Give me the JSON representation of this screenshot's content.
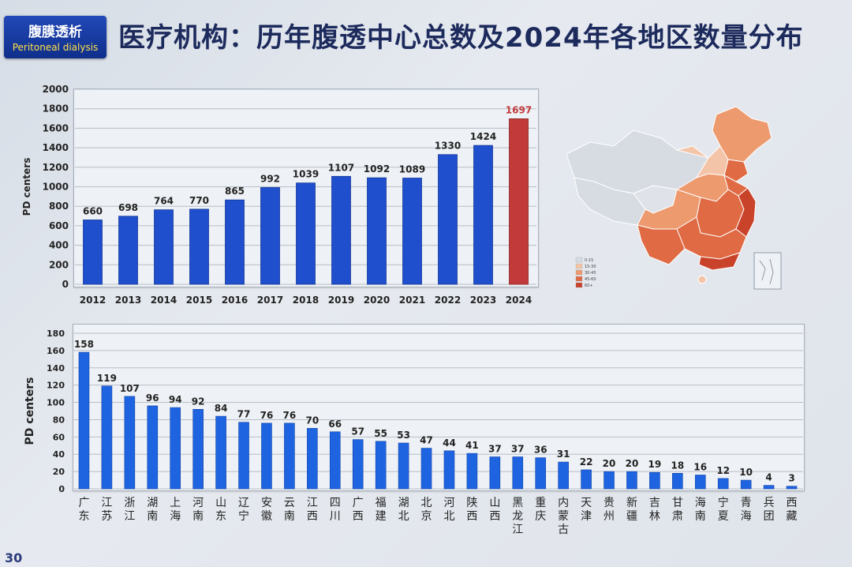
{
  "header": {
    "badge_zh": "腹膜透析",
    "badge_en": "Peritoneal dialysis",
    "title": "医疗机构：历年腹透中心总数及2024年各地区数量分布"
  },
  "page_number": "30",
  "map": {
    "legend": [
      "0-15",
      "15-30",
      "30-45",
      "45-60",
      "60+"
    ],
    "colors": [
      "#d7dbe2",
      "#f3c4a8",
      "#ec9a6e",
      "#df6a43",
      "#c9422a"
    ]
  },
  "chart_data": [
    {
      "type": "bar",
      "ylabel": "PD centers",
      "ylim": [
        0,
        2000
      ],
      "yticks": [
        0,
        200,
        400,
        600,
        800,
        1000,
        1200,
        1400,
        1600,
        1800,
        2000
      ],
      "categories": [
        "2012",
        "2013",
        "2014",
        "2015",
        "2016",
        "2017",
        "2018",
        "2019",
        "2020",
        "2021",
        "2022",
        "2023",
        "2024"
      ],
      "values": [
        660,
        698,
        764,
        770,
        865,
        992,
        1039,
        1107,
        1092,
        1089,
        1330,
        1424,
        1697
      ],
      "colors": {
        "bar": "#1f4fcc",
        "highlight": "#c23a3a",
        "highlight_label": "#c23a3a"
      },
      "highlight_index": 12
    },
    {
      "type": "bar",
      "ylabel": "PD centers",
      "ylim": [
        0,
        180
      ],
      "yticks": [
        0,
        20,
        40,
        60,
        80,
        100,
        120,
        140,
        160,
        180
      ],
      "categories": [
        "广东",
        "江苏",
        "浙江",
        "湖南",
        "上海",
        "河南",
        "山东",
        "辽宁",
        "安徽",
        "云南",
        "江西",
        "四川",
        "广西",
        "福建",
        "湖北",
        "北京",
        "河北",
        "陕西",
        "山西",
        "黑龙江",
        "重庆",
        "内蒙古",
        "天津",
        "贵州",
        "新疆",
        "吉林",
        "甘肃",
        "海南",
        "宁夏",
        "青海",
        "兵团",
        "西藏"
      ],
      "values": [
        158,
        119,
        107,
        96,
        94,
        92,
        84,
        77,
        76,
        76,
        70,
        66,
        57,
        55,
        53,
        47,
        44,
        41,
        37,
        37,
        36,
        31,
        22,
        20,
        20,
        19,
        18,
        16,
        12,
        10,
        4,
        3
      ],
      "colors": {
        "bar": "#1e63e0"
      }
    }
  ]
}
